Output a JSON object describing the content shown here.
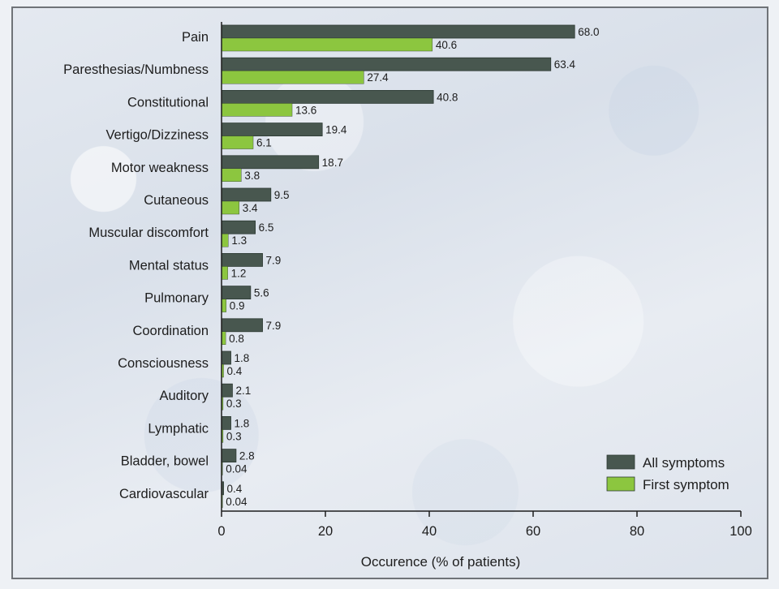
{
  "chart_data": {
    "type": "bar",
    "orientation": "horizontal",
    "categories": [
      "Pain",
      "Paresthesias/Numbness",
      "Constitutional",
      "Vertigo/Dizziness",
      "Motor weakness",
      "Cutaneous",
      "Muscular discomfort",
      "Mental status",
      "Pulmonary",
      "Coordination",
      "Consciousness",
      "Auditory",
      "Lymphatic",
      "Bladder, bowel",
      "Cardiovascular"
    ],
    "series": [
      {
        "name": "All symptoms",
        "color": "#48574f",
        "values": [
          68.0,
          63.4,
          40.8,
          19.4,
          18.7,
          9.5,
          6.5,
          7.9,
          5.6,
          7.9,
          1.8,
          2.1,
          1.8,
          2.8,
          0.4
        ],
        "labels": [
          "68.0",
          "63.4",
          "40.8",
          "19.4",
          "18.7",
          "9.5",
          "6.5",
          "7.9",
          "5.6",
          "7.9",
          "1.8",
          "2.1",
          "1.8",
          "2.8",
          "0.4"
        ]
      },
      {
        "name": "First symptom",
        "color": "#8cc63f",
        "values": [
          40.6,
          27.4,
          13.6,
          6.1,
          3.8,
          3.4,
          1.3,
          1.2,
          0.9,
          0.8,
          0.4,
          0.3,
          0.3,
          0.04,
          0.04
        ],
        "labels": [
          "40.6",
          "27.4",
          "13.6",
          "6.1",
          "3.8",
          "3.4",
          "1.3",
          "1.2",
          "0.9",
          "0.8",
          "0.4",
          "0.3",
          "0.3",
          "0.04",
          "0.04"
        ]
      }
    ],
    "xlabel": "Occurence (% of patients)",
    "xlim": [
      0,
      100
    ],
    "xticks": [
      0,
      20,
      40,
      60,
      80,
      100
    ],
    "grid": false,
    "legend_position": "bottom-right"
  }
}
